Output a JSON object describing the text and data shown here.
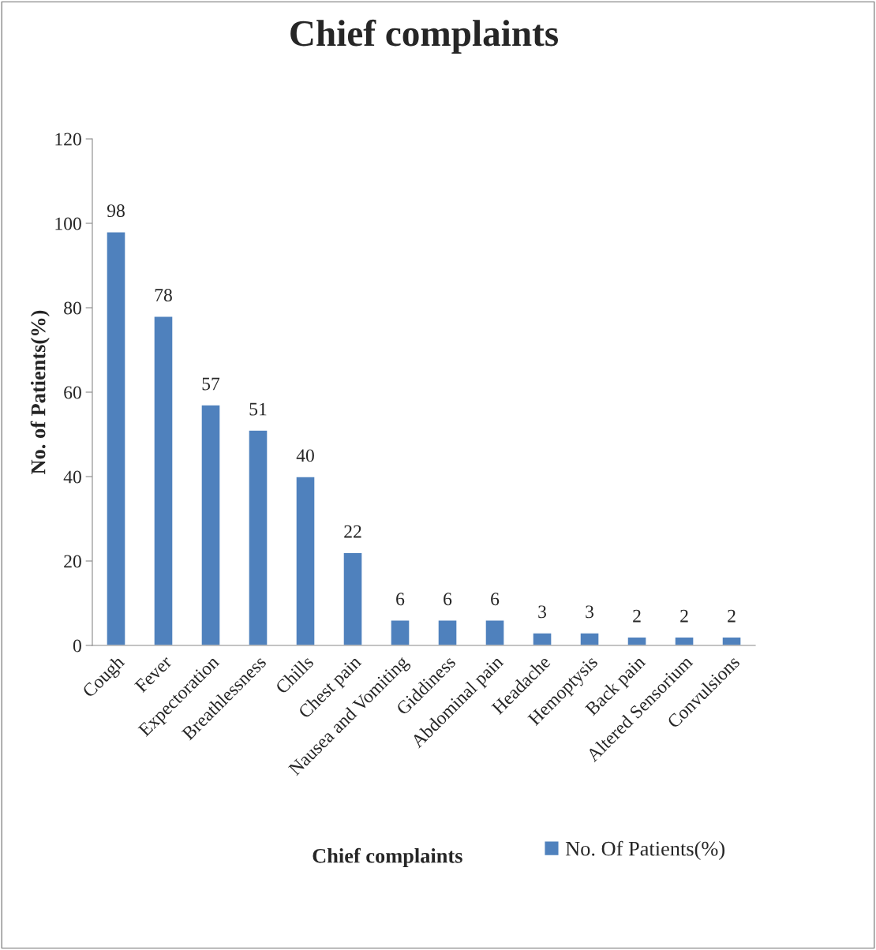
{
  "chart_data": {
    "type": "bar",
    "title": "Chief complaints",
    "xlabel": "Chief complaints",
    "ylabel": "No. of Patients(%)",
    "categories": [
      "Cough",
      "Fever",
      "Expectoration",
      "Breathlessness",
      "Chills",
      "Chest pain",
      "Nausea and Vomiting",
      "Giddiness",
      "Abdominal pain",
      "Headache",
      "Hemoptysis",
      "Back pain",
      "Altered Sensorium",
      "Convulsions"
    ],
    "series": [
      {
        "name": "No. Of Patients(%)",
        "color": "#4f81bd",
        "values": [
          98,
          78,
          57,
          51,
          40,
          22,
          6,
          6,
          6,
          3,
          3,
          2,
          2,
          2
        ]
      }
    ],
    "ylim": [
      0,
      120
    ],
    "yticks": [
      0,
      20,
      40,
      60,
      80,
      100,
      120
    ],
    "grid": false,
    "legend": "bottom right",
    "data_labels": true
  }
}
